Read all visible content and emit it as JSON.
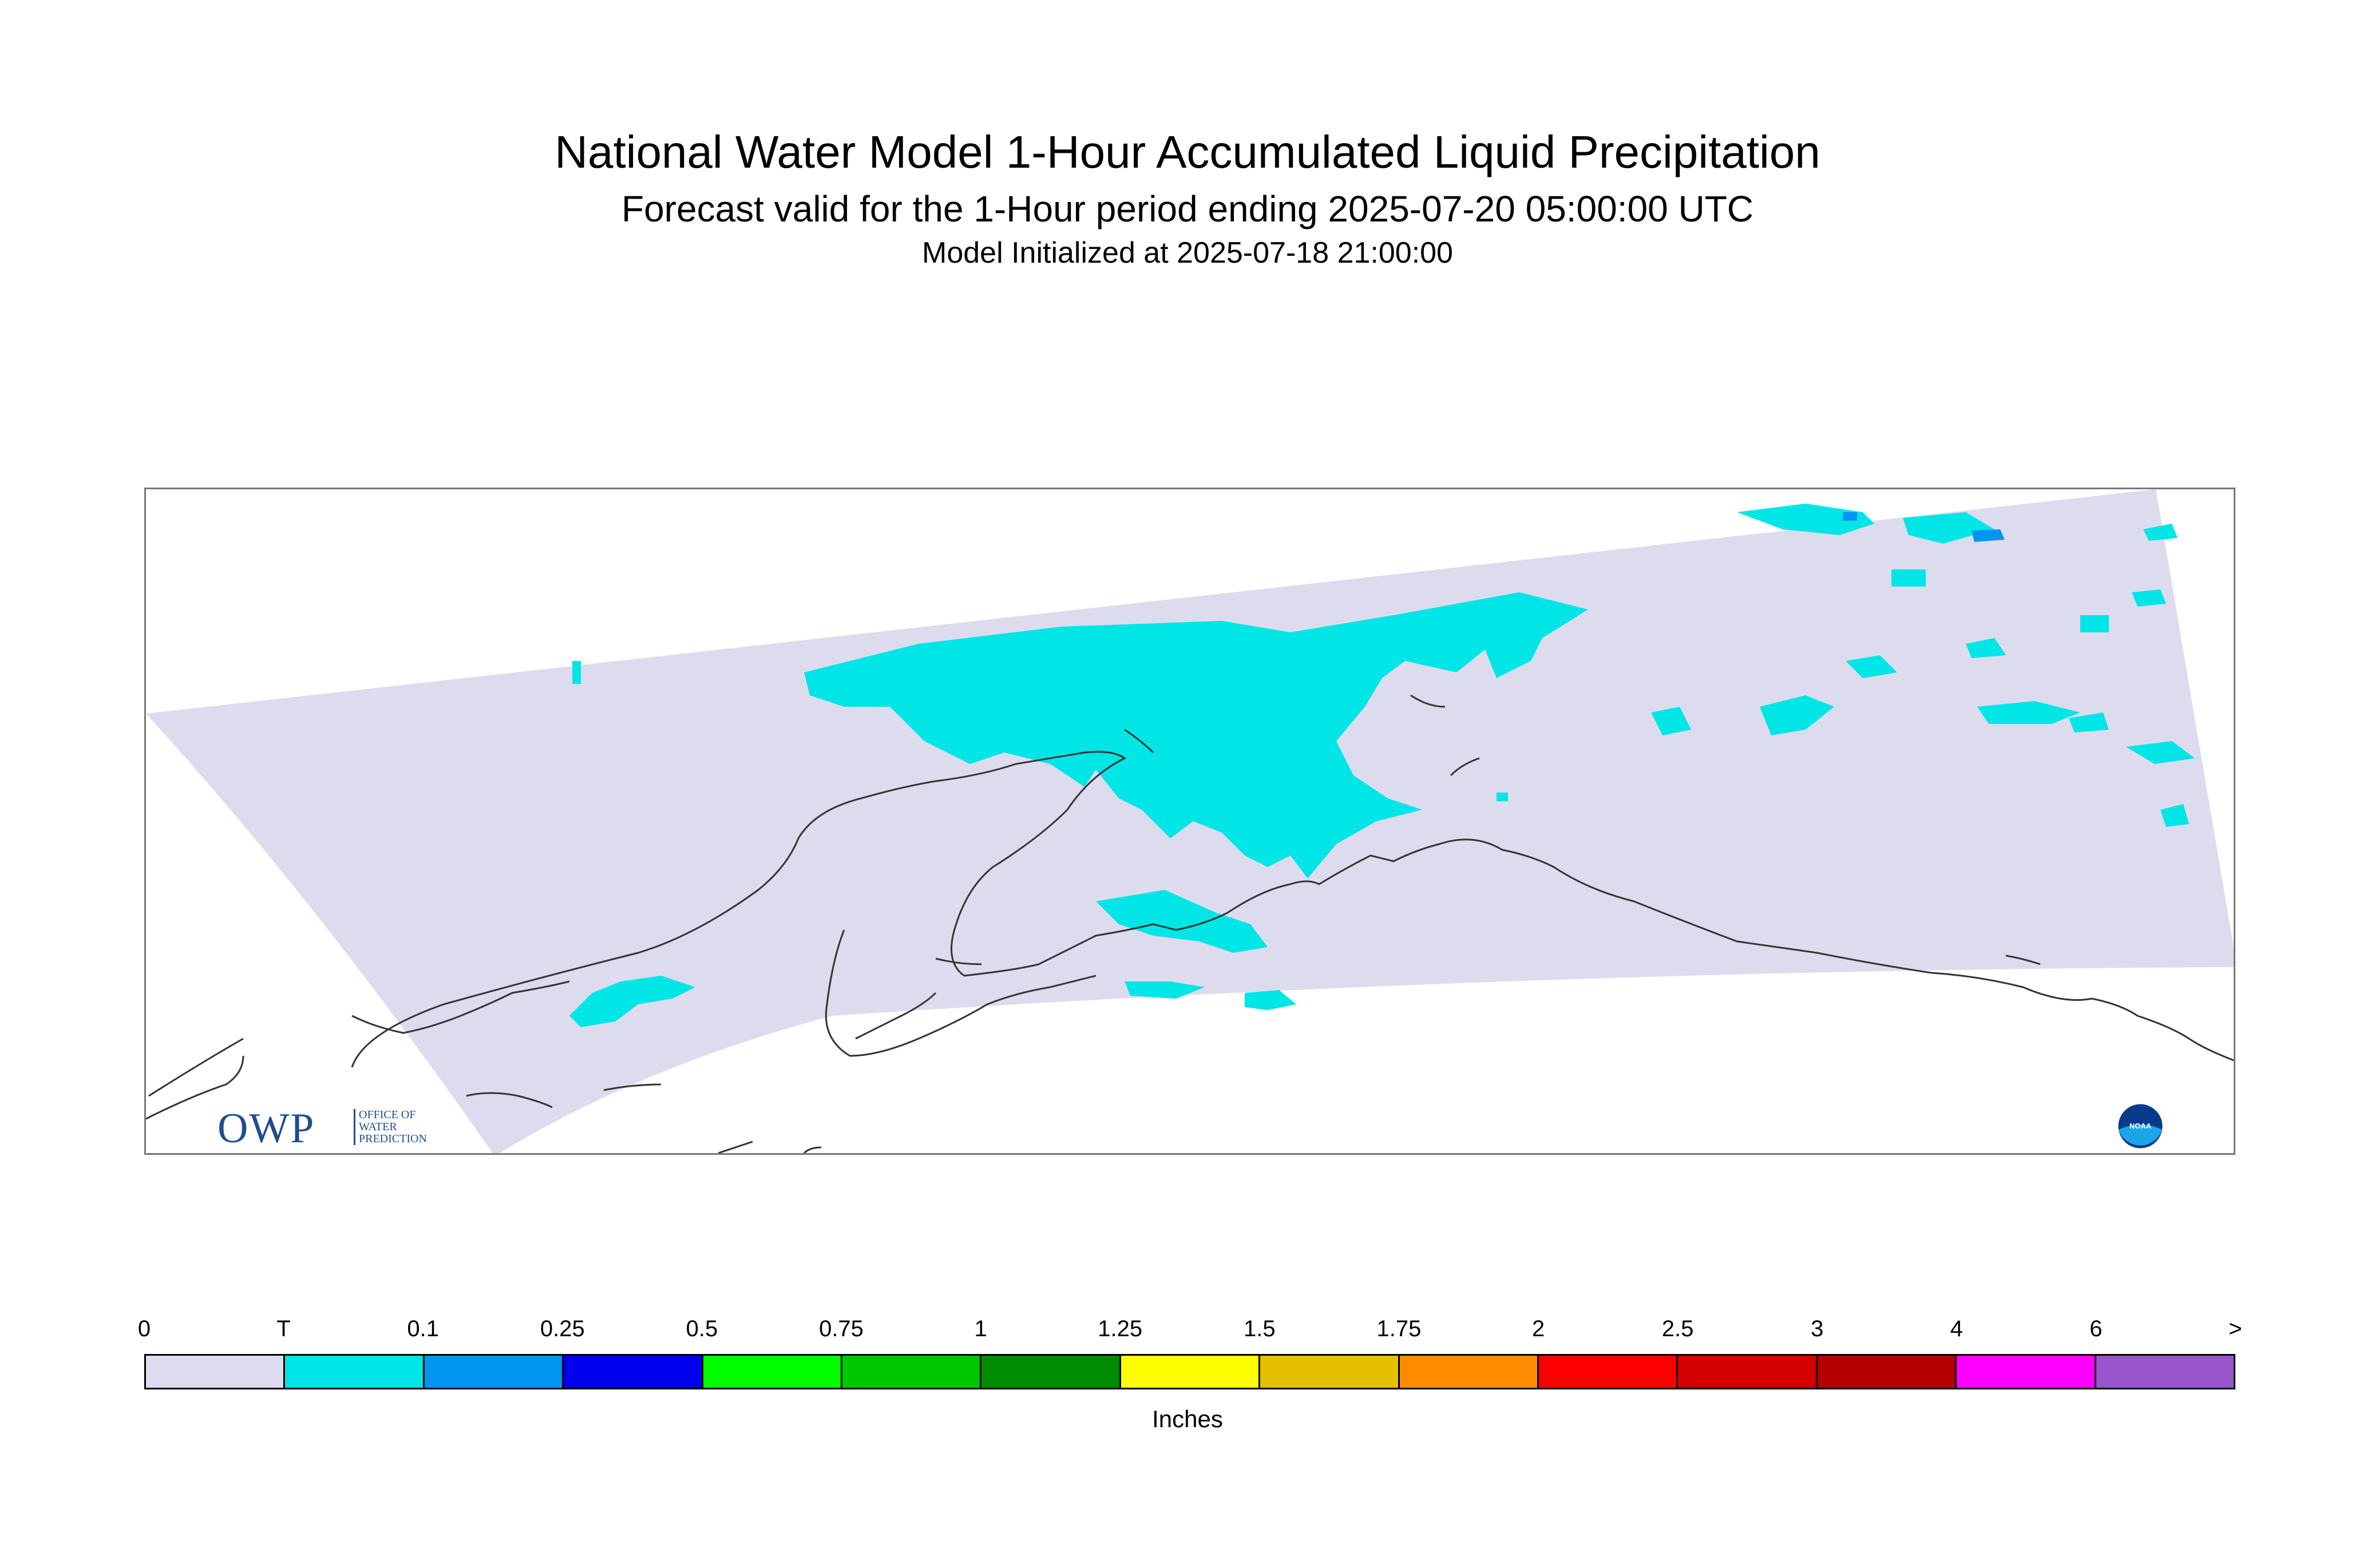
{
  "title": "National Water Model 1-Hour Accumulated Liquid Precipitation",
  "subtitle": "Forecast valid for the 1-Hour period ending 2025-07-20 05:00:00 UTC",
  "init": "Model Initialized at 2025-07-18 21:00:00",
  "logos": {
    "owp_letters": "OWP",
    "owp_sub": "OFFICE OF WATER PREDICTION",
    "noaa": "NOAA"
  },
  "legend": {
    "tick_labels": [
      "0",
      "T",
      "0.1",
      "0.25",
      "0.5",
      "0.75",
      "1",
      "1.25",
      "1.5",
      "1.75",
      "2",
      "2.5",
      "3",
      "4",
      "6",
      ">"
    ],
    "colors": [
      "#dcdcee",
      "#00e5e5",
      "#0096f0",
      "#0000ee",
      "#00ff00",
      "#00c800",
      "#008c00",
      "#ffff00",
      "#e5c000",
      "#ff8c00",
      "#ff0000",
      "#d50000",
      "#b40000",
      "#ff00ff",
      "#9955cc"
    ],
    "units": "Inches"
  },
  "map": {
    "domain_fill": "#dcdcee",
    "precip_color": "#00e5e5",
    "heavier_precip_color": "#0096f0",
    "coastline_color": "#333333"
  }
}
